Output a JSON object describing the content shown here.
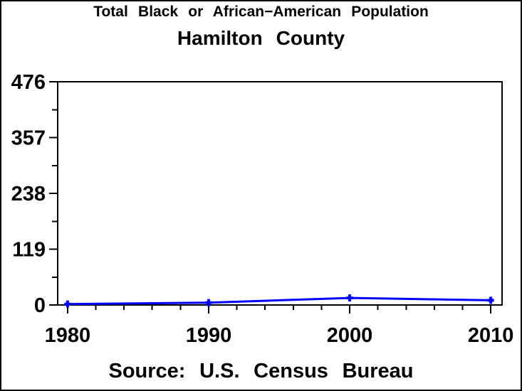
{
  "title": "Total Black or African−American Population",
  "subtitle": "Hamilton County",
  "footer": "Source: U.S. Census Bureau",
  "colors": {
    "line": "#0000ff",
    "axis": "#000000",
    "text": "#000000",
    "background": "#ffffff"
  },
  "chart_data": {
    "type": "line",
    "title": "Total Black or African−American Population",
    "subtitle": "Hamilton County",
    "source_note": "Source: U.S. Census Bureau",
    "x": [
      1980,
      1990,
      2000,
      2010
    ],
    "values": [
      2,
      5,
      15,
      10
    ],
    "series": [
      {
        "name": "Total Black or African−American Population",
        "values": [
          2,
          5,
          15,
          10
        ]
      }
    ],
    "xlabel": "",
    "ylabel": "",
    "x_tick_labels": [
      "1980",
      "1990",
      "2000",
      "2010"
    ],
    "x_ticks_major": [
      1980,
      1990,
      2000,
      2010
    ],
    "x_minor_interval": 2,
    "y_tick_labels": [
      "0",
      "119",
      "238",
      "357",
      "476"
    ],
    "y_ticks_major": [
      0,
      119,
      238,
      357,
      476
    ],
    "y_ticks_minor": [
      59.5,
      178.5,
      297.5,
      416.5
    ],
    "xlim": [
      1979.3,
      2010.8
    ],
    "ylim": [
      0,
      476
    ],
    "grid": false,
    "legend": "none",
    "marker": "plus",
    "line_color": "#0000ff"
  }
}
